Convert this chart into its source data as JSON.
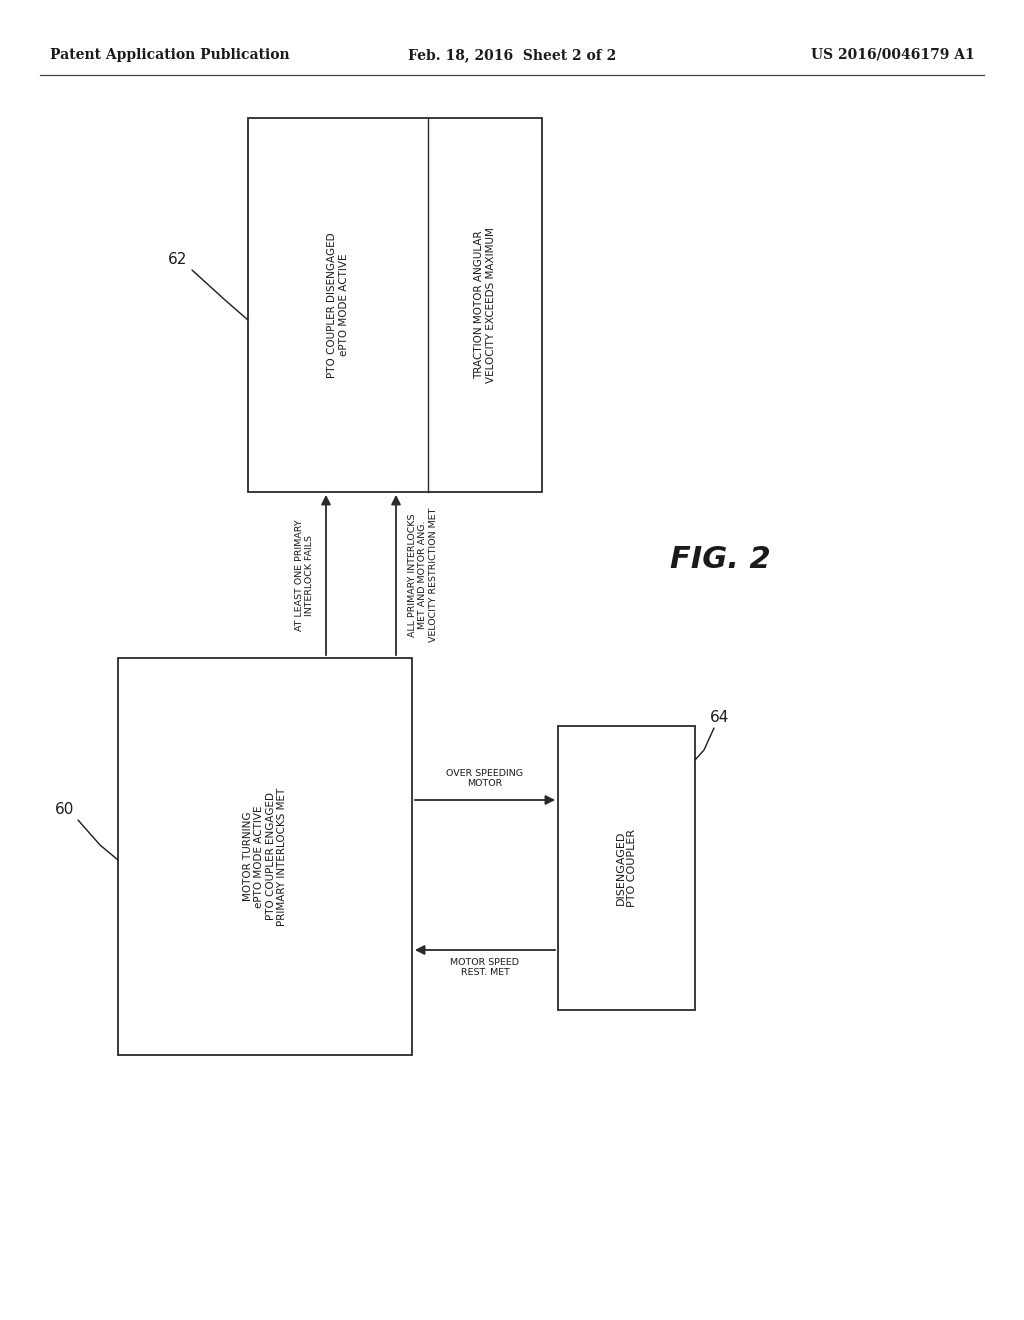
{
  "header_left": "Patent Application Publication",
  "header_mid": "Feb. 18, 2016  Sheet 2 of 2",
  "header_right": "US 2016/0046179 A1",
  "fig_label": "FIG. 2",
  "box62_label": "62",
  "box60_label": "60",
  "box64_label": "64",
  "bg_color": "#ffffff",
  "box_edge_color": "#2a2a2a",
  "text_color": "#1a1a1a",
  "arrow_color": "#2a2a2a",
  "header_fontsize": 10,
  "body_fontsize": 7.5,
  "label_fontsize": 11
}
